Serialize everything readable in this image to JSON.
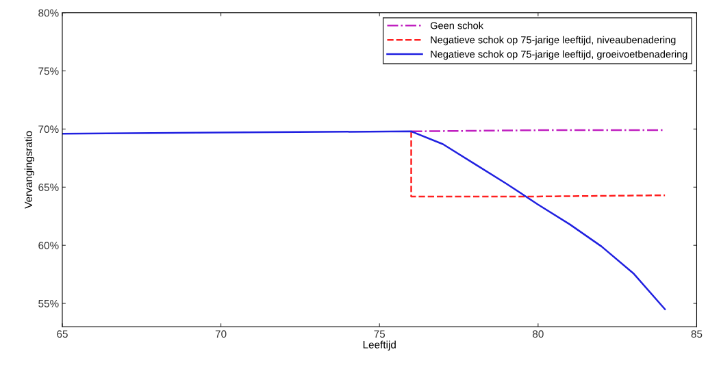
{
  "chart_data": {
    "type": "line",
    "xlabel": "Leeftijd",
    "ylabel": "Vervangingsratio",
    "xlim": [
      65,
      85
    ],
    "xticks": [
      65,
      70,
      75,
      80,
      85
    ],
    "ylim": [
      53,
      80
    ],
    "yticks": [
      {
        "value": 55,
        "label": "55%"
      },
      {
        "value": 60,
        "label": "60%"
      },
      {
        "value": 65,
        "label": "65%"
      },
      {
        "value": 70,
        "label": "70%"
      },
      {
        "value": 75,
        "label": "75%"
      },
      {
        "value": 80,
        "label": "80%"
      }
    ],
    "grid": false,
    "legend": "top right",
    "marker": "none",
    "series": [
      {
        "name": "Geen schok",
        "color": "#c020c0",
        "line_style": "dashdot",
        "x": [
          76,
          80,
          84
        ],
        "values": [
          69.8,
          69.9,
          69.9
        ]
      },
      {
        "name": "Negatieve schok op 75-jarige leeftijd, niveaubenadering",
        "color": "#ff2020",
        "line_style": "dashed",
        "x": [
          76,
          76,
          80,
          84
        ],
        "values": [
          69.8,
          64.2,
          64.2,
          64.3
        ]
      },
      {
        "name": "Negatieve schok op 75-jarige leeftijd, groeivoetbenadering",
        "color": "#2020e0",
        "line_style": "solid",
        "x": [
          65,
          70,
          76,
          77,
          78,
          79,
          80,
          81,
          82,
          83,
          84
        ],
        "values": [
          69.6,
          69.7,
          69.8,
          68.7,
          67.0,
          65.3,
          63.5,
          61.8,
          59.9,
          57.6,
          54.5
        ]
      }
    ]
  }
}
